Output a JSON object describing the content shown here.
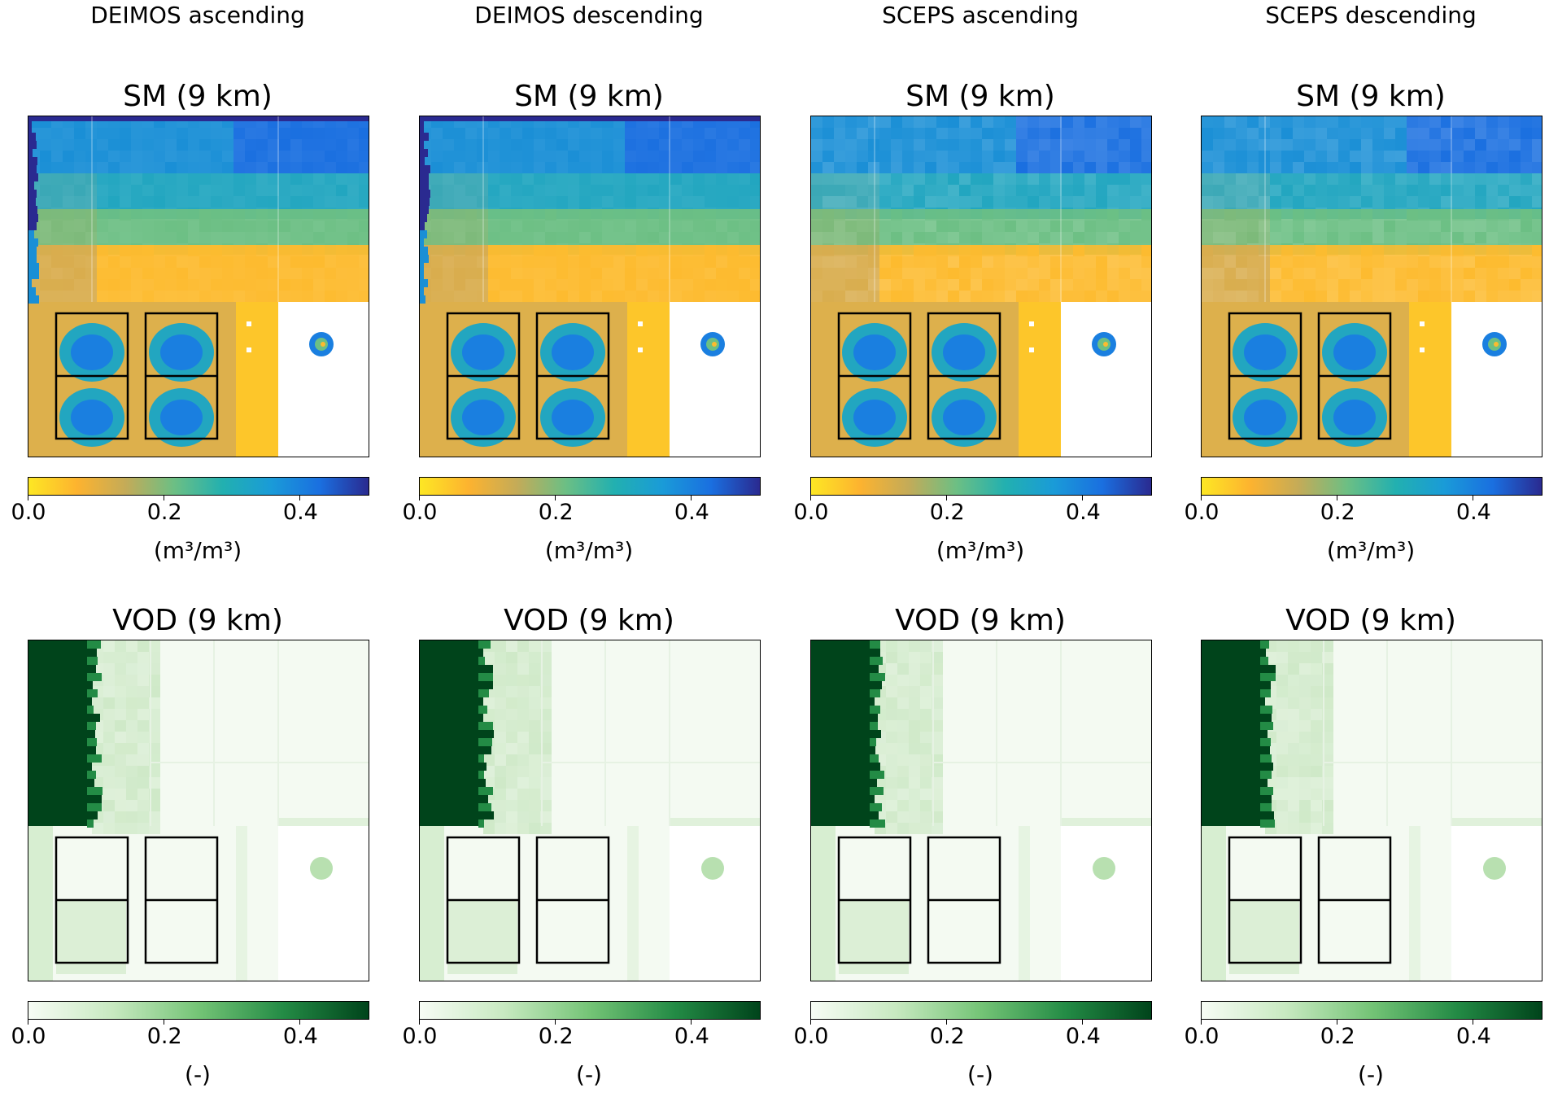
{
  "columns": [
    {
      "header": "DEIMOS ascending"
    },
    {
      "header": "DEIMOS descending"
    },
    {
      "header": "SCEPS ascending"
    },
    {
      "header": "SCEPS descending"
    }
  ],
  "rows": [
    {
      "title": "SM (9 km)",
      "unit": "(m³/m³)",
      "colormap": "yellow-green-blue"
    },
    {
      "title": "VOD (9 km)",
      "unit": "(-)",
      "colormap": "greens"
    }
  ],
  "colors": {
    "sm_stops": [
      "#fde724",
      "#fdb32f",
      "#c4ab58",
      "#6cbf84",
      "#22b0b0",
      "#1a9bd8",
      "#1a6fe0",
      "#2a2a90"
    ],
    "vod_stops": [
      "#f7fcf5",
      "#c7e9c0",
      "#74c476",
      "#238b45",
      "#00441b"
    ]
  },
  "chart_data": [
    {
      "type": "heatmap",
      "title": "SM (9 km)",
      "column": "DEIMOS ascending",
      "colorbar": {
        "range": [
          0.0,
          0.5
        ],
        "ticks": [
          0.0,
          0.2,
          0.4
        ],
        "tick_labels": [
          "0.0",
          "0.2",
          "0.4"
        ],
        "label": "(m³/m³)"
      }
    },
    {
      "type": "heatmap",
      "title": "SM (9 km)",
      "column": "DEIMOS descending",
      "colorbar": {
        "range": [
          0.0,
          0.5
        ],
        "ticks": [
          0.0,
          0.2,
          0.4
        ],
        "tick_labels": [
          "0.0",
          "0.2",
          "0.4"
        ],
        "label": "(m³/m³)"
      }
    },
    {
      "type": "heatmap",
      "title": "SM (9 km)",
      "column": "SCEPS ascending",
      "colorbar": {
        "range": [
          0.0,
          0.5
        ],
        "ticks": [
          0.0,
          0.2,
          0.4
        ],
        "tick_labels": [
          "0.0",
          "0.2",
          "0.4"
        ],
        "label": "(m³/m³)"
      }
    },
    {
      "type": "heatmap",
      "title": "SM (9 km)",
      "column": "SCEPS descending",
      "colorbar": {
        "range": [
          0.0,
          0.5
        ],
        "ticks": [
          0.0,
          0.2,
          0.4
        ],
        "tick_labels": [
          "0.0",
          "0.2",
          "0.4"
        ],
        "label": "(m³/m³)"
      }
    },
    {
      "type": "heatmap",
      "title": "VOD (9 km)",
      "column": "DEIMOS ascending",
      "colorbar": {
        "range": [
          0.0,
          0.5
        ],
        "ticks": [
          0.0,
          0.2,
          0.4
        ],
        "tick_labels": [
          "0.0",
          "0.2",
          "0.4"
        ],
        "label": "(-)"
      }
    },
    {
      "type": "heatmap",
      "title": "VOD (9 km)",
      "column": "DEIMOS descending",
      "colorbar": {
        "range": [
          0.0,
          0.5
        ],
        "ticks": [
          0.0,
          0.2,
          0.4
        ],
        "tick_labels": [
          "0.0",
          "0.2",
          "0.4"
        ],
        "label": "(-)"
      }
    },
    {
      "type": "heatmap",
      "title": "VOD (9 km)",
      "column": "SCEPS ascending",
      "colorbar": {
        "range": [
          0.0,
          0.5
        ],
        "ticks": [
          0.0,
          0.2,
          0.4
        ],
        "tick_labels": [
          "0.0",
          "0.2",
          "0.4"
        ],
        "label": "(-)"
      }
    },
    {
      "type": "heatmap",
      "title": "VOD (9 km)",
      "column": "SCEPS descending",
      "colorbar": {
        "range": [
          0.0,
          0.5
        ],
        "ticks": [
          0.0,
          0.2,
          0.4
        ],
        "tick_labels": [
          "0.0",
          "0.2",
          "0.4"
        ],
        "label": "(-)"
      }
    }
  ]
}
